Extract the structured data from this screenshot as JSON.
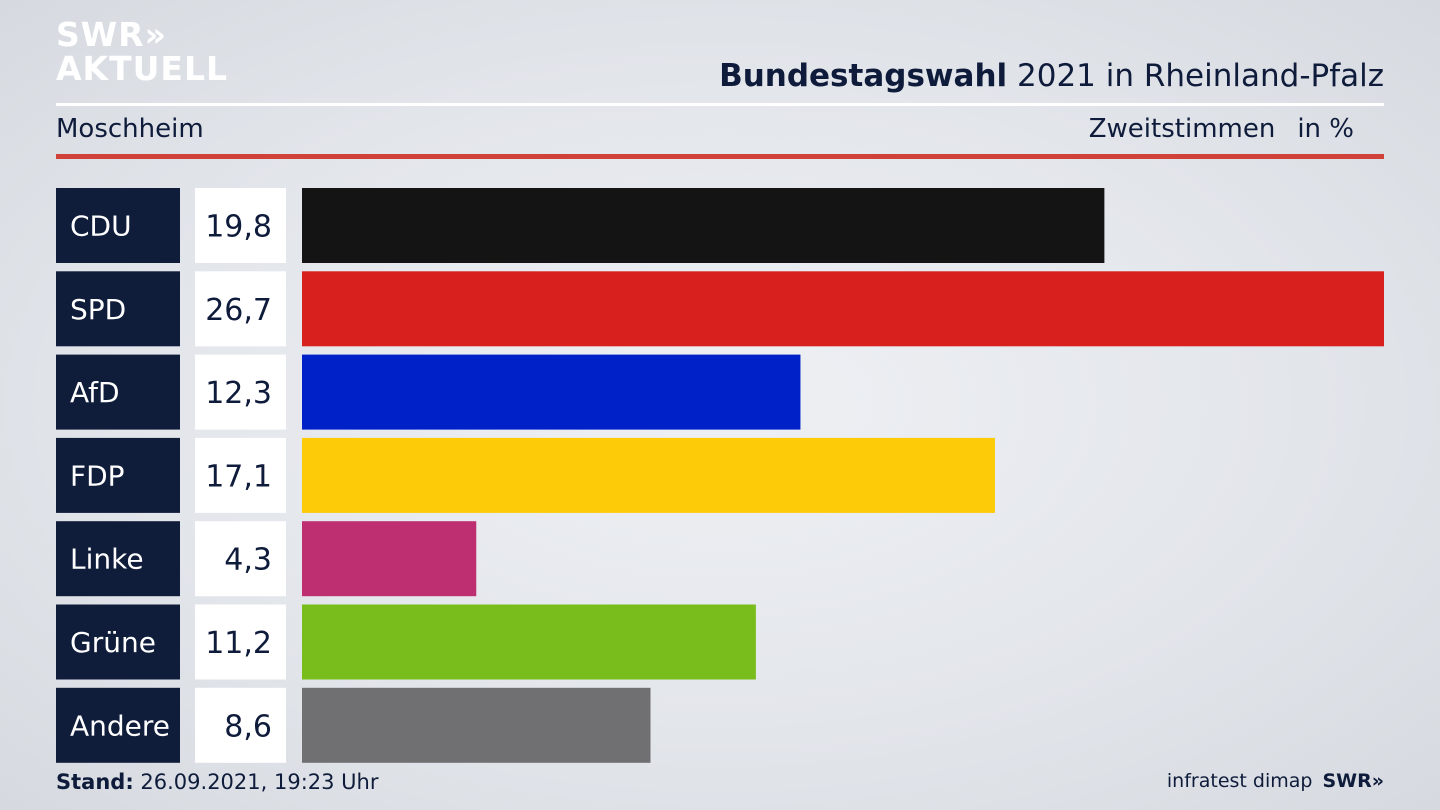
{
  "brand": {
    "line1": "SWR»",
    "line2": "AKTUELL"
  },
  "header": {
    "title_bold": "Bundestagswahl",
    "title_rest": " 2021 in Rheinland-Pfalz",
    "region": "Moschheim",
    "vote_type": "Zweitstimmen",
    "unit": "in %"
  },
  "footer": {
    "stand_label": "Stand:",
    "stand_value": " 26.09.2021, 19:23 Uhr",
    "source": "infratest dimap",
    "broadcaster": "SWR»"
  },
  "chart_data": {
    "type": "bar",
    "orientation": "horizontal",
    "xlim": [
      0,
      26.7
    ],
    "categories": [
      "CDU",
      "SPD",
      "AfD",
      "FDP",
      "Linke",
      "Grüne",
      "Andere"
    ],
    "values": [
      19.8,
      26.7,
      12.3,
      17.1,
      4.3,
      11.2,
      8.6
    ],
    "value_labels": [
      "19,8",
      "26,7",
      "12,3",
      "17,1",
      "4,3",
      "11,2",
      "8,6"
    ],
    "colors": [
      "#141414",
      "#d8211f",
      "#0021c8",
      "#fdcb08",
      "#be2f72",
      "#78bd1c",
      "#707072"
    ]
  }
}
